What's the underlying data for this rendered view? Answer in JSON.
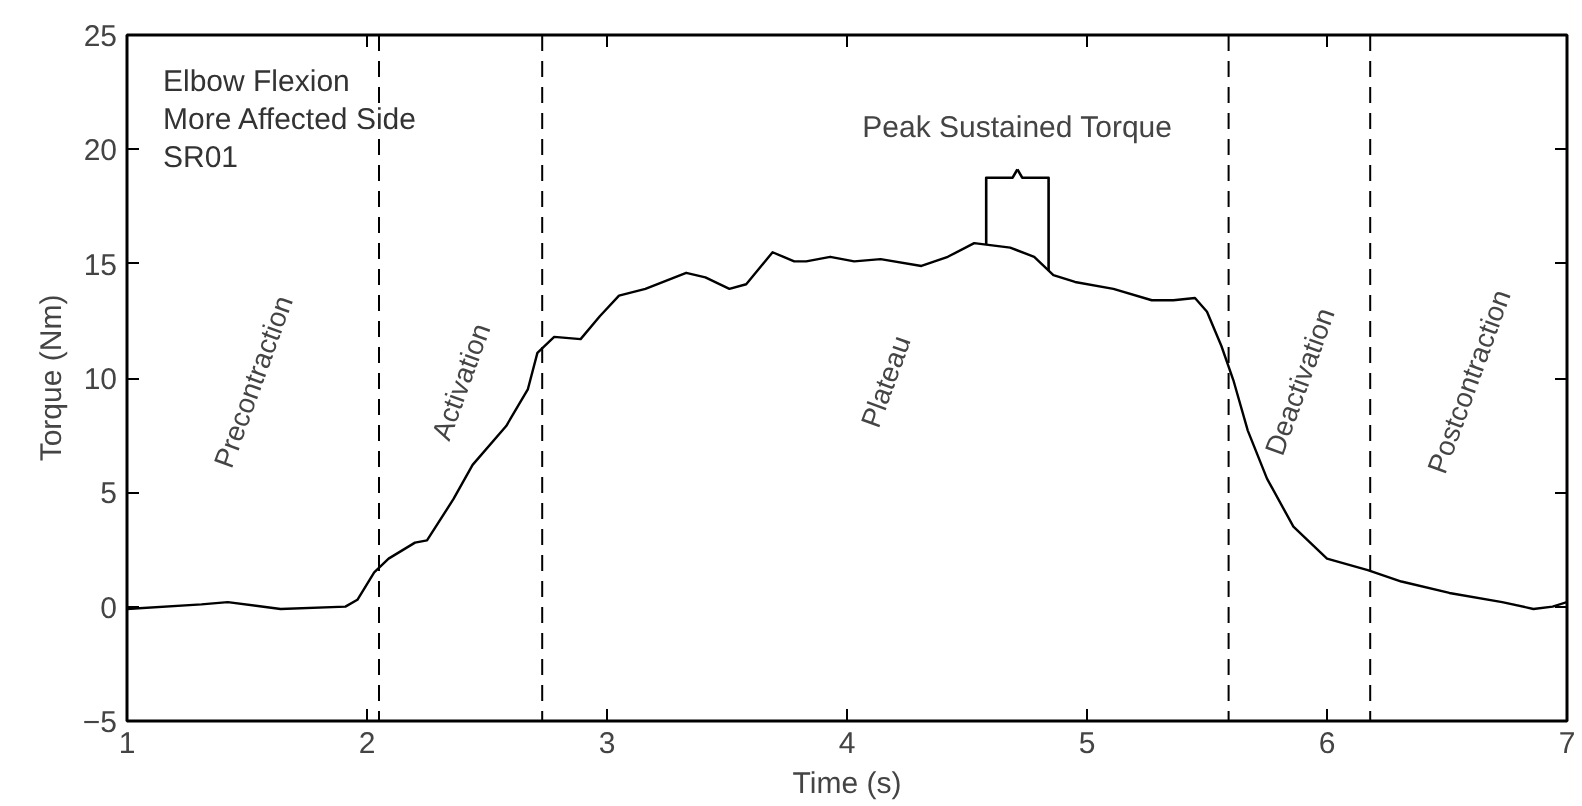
{
  "chart_data": {
    "type": "line",
    "xlabel": "Time (s)",
    "ylabel": "Torque (Nm)",
    "xlim": [
      1,
      7
    ],
    "xticks": [
      1,
      2,
      3,
      4,
      5,
      6,
      7
    ],
    "ylim": [
      -5,
      25
    ],
    "yticks": [
      -5,
      0,
      5,
      10,
      15,
      20,
      25
    ],
    "grid": false,
    "marker": "none",
    "line_style": "solid",
    "series": [
      {
        "color": "#000000",
        "x": [
          1.0,
          1.31,
          1.42,
          1.64,
          1.91,
          1.96,
          2.03,
          2.09,
          2.2,
          2.25,
          2.36,
          2.44,
          2.58,
          2.67,
          2.71,
          2.78,
          2.89,
          2.97,
          3.05,
          3.16,
          3.33,
          3.41,
          3.51,
          3.58,
          3.69,
          3.78,
          3.83,
          3.93,
          4.03,
          4.14,
          4.31,
          4.42,
          4.53,
          4.68,
          4.78,
          4.86,
          4.95,
          5.11,
          5.27,
          5.36,
          5.45,
          5.5,
          5.56,
          5.61,
          5.67,
          5.75,
          5.86,
          6.0,
          6.17,
          6.31,
          6.51,
          6.73,
          6.86,
          6.94,
          7.0
        ],
        "values": [
          -0.1,
          0.1,
          0.2,
          -0.1,
          0,
          0.3,
          1.5,
          2.1,
          2.8,
          2.9,
          4.7,
          6.2,
          7.9,
          9.5,
          11.1,
          11.8,
          11.7,
          12.7,
          13.6,
          13.9,
          14.6,
          14.4,
          13.9,
          14.1,
          15.5,
          15.1,
          15.1,
          15.3,
          15.1,
          15.2,
          14.9,
          15.3,
          15.9,
          15.7,
          15.3,
          14.5,
          14.2,
          13.9,
          13.4,
          13.4,
          13.5,
          12.9,
          11.4,
          9.9,
          7.7,
          5.6,
          3.5,
          2.1,
          1.6,
          1.1,
          0.6,
          0.2,
          -0.1,
          0,
          0.2
        ]
      }
    ],
    "ref_lines": [
      {
        "axis": "x",
        "value": 2.05,
        "line_style": "dashed"
      },
      {
        "axis": "x",
        "value": 2.73,
        "line_style": "dashed"
      },
      {
        "axis": "x",
        "value": 5.59,
        "line_style": "dashed"
      },
      {
        "axis": "x",
        "value": 6.18,
        "line_style": "dashed"
      },
      {
        "axis": "x",
        "value": 4.58,
        "line_style": "solid"
      },
      {
        "axis": "x",
        "value": 4.84,
        "line_style": "solid"
      }
    ],
    "annotations": [
      "Elbow Flexion",
      "More Affected Side",
      "SR01",
      "Peak Sustained Torque",
      "Precontraction",
      "Activation",
      "Plateau",
      "Deactivation",
      "Postcontraction"
    ]
  }
}
